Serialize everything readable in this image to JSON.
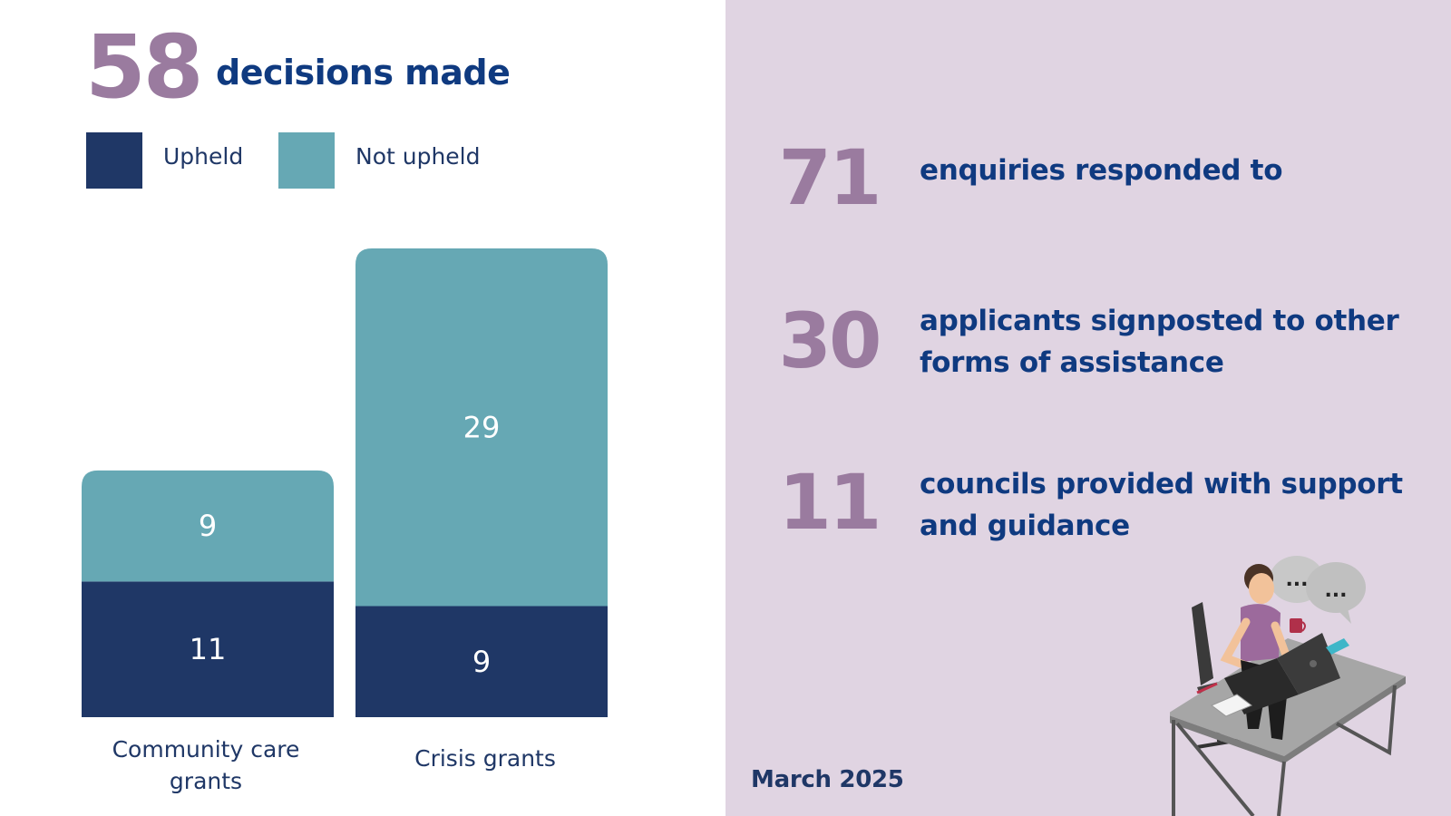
{
  "headline": {
    "number": "58",
    "text": "decisions made"
  },
  "legend": [
    {
      "label": "Upheld",
      "color": "#1f3766"
    },
    {
      "label": "Not upheld",
      "color": "#66a8b4"
    }
  ],
  "chart_data": {
    "type": "bar",
    "stacked": true,
    "categories": [
      "Community care grants",
      "Crisis grants"
    ],
    "category_labels": [
      [
        "Community care",
        "grants"
      ],
      [
        "Crisis grants"
      ]
    ],
    "series": [
      {
        "name": "Upheld",
        "values": [
          11,
          9
        ],
        "color": "#1f3766"
      },
      {
        "name": "Not upheld",
        "values": [
          9,
          29
        ],
        "color": "#66a8b4"
      }
    ],
    "legend_position": "top-left",
    "grid": false
  },
  "stats": [
    {
      "number": "71",
      "text": [
        "enquiries responded to"
      ]
    },
    {
      "number": "30",
      "text": [
        "applicants signposted to other",
        "forms of assistance"
      ]
    },
    {
      "number": "11",
      "text": [
        "councils provided with support",
        "and guidance"
      ]
    }
  ],
  "date": "March 2025",
  "colors": {
    "accent_purple": "#9a7b9f",
    "heading_blue": "#0f3a80",
    "right_panel_bg": "#e0d4e2"
  },
  "illustration": {
    "icon": "person-at-desk-with-laptop-icon",
    "speech_bubbles": [
      "...",
      "..."
    ]
  }
}
